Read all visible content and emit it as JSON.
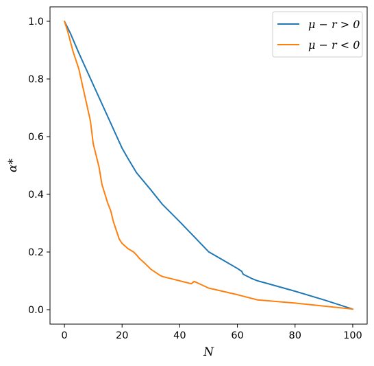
{
  "chart_data": {
    "type": "line",
    "xlabel": "N",
    "ylabel": "α*",
    "xlim": [
      -5,
      105
    ],
    "ylim": [
      -0.05,
      1.05
    ],
    "xticks": [
      0,
      20,
      40,
      60,
      80,
      100
    ],
    "xtick_labels": [
      "0",
      "20",
      "40",
      "60",
      "80",
      "100"
    ],
    "yticks": [
      0.0,
      0.2,
      0.4,
      0.6,
      0.8,
      1.0
    ],
    "ytick_labels": [
      "0.0",
      "0.2",
      "0.4",
      "0.6",
      "0.8",
      "1.0"
    ],
    "grid": false,
    "legend": "top-right",
    "series": [
      {
        "name": "μ − r > 0",
        "color": "#1f77b4",
        "x": [
          0,
          2,
          5,
          10,
          15,
          20,
          22,
          25,
          30,
          34,
          40,
          45,
          50,
          55,
          60,
          61.5,
          62,
          65,
          67,
          70,
          80,
          90,
          100
        ],
        "y": [
          1.0,
          0.96,
          0.89,
          0.78,
          0.67,
          0.56,
          0.525,
          0.475,
          0.415,
          0.365,
          0.305,
          0.253,
          0.201,
          0.172,
          0.143,
          0.133,
          0.123,
          0.108,
          0.1,
          0.092,
          0.064,
          0.034,
          0.002
        ]
      },
      {
        "name": "μ − r < 0",
        "color": "#ff7f0e",
        "x": [
          0,
          1,
          3,
          5,
          7,
          9,
          10,
          12,
          13,
          15,
          16,
          17,
          18,
          19,
          20,
          22,
          24,
          25,
          26,
          28,
          30,
          33,
          34,
          40,
          44,
          45,
          47,
          50,
          60,
          67,
          80,
          100
        ],
        "y": [
          1.0,
          0.97,
          0.895,
          0.835,
          0.745,
          0.655,
          0.575,
          0.495,
          0.435,
          0.37,
          0.345,
          0.305,
          0.275,
          0.245,
          0.23,
          0.212,
          0.2,
          0.19,
          0.178,
          0.16,
          0.14,
          0.12,
          0.115,
          0.1,
          0.09,
          0.098,
          0.089,
          0.075,
          0.052,
          0.034,
          0.023,
          0.002
        ]
      }
    ]
  }
}
